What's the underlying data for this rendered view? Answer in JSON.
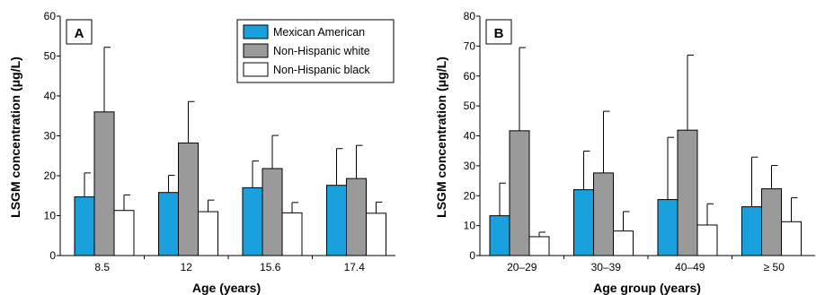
{
  "chart_data": [
    {
      "type": "bar",
      "panel_label": "A",
      "xlabel": "Age (years)",
      "ylabel": "LSGM concentration (μg/L)",
      "ylim": [
        0,
        60
      ],
      "yticks": [
        0,
        10,
        20,
        30,
        40,
        50,
        60
      ],
      "categories": [
        "8.5",
        "12",
        "15.6",
        "17.4"
      ],
      "error_bars": "upper",
      "legend": {
        "placement": "top-right"
      },
      "series": [
        {
          "name": "Mexican American",
          "color": "#1aa0dc",
          "values": [
            14.7,
            15.8,
            17.0,
            17.6
          ],
          "errors_upper": [
            20.7,
            20.1,
            23.7,
            26.8
          ]
        },
        {
          "name": "Non-Hispanic white",
          "color": "#9a9a9a",
          "values": [
            36.0,
            28.2,
            21.8,
            19.3
          ],
          "errors_upper": [
            52.2,
            38.6,
            30.1,
            27.6
          ]
        },
        {
          "name": "Non-Hispanic black",
          "color": "#ffffff",
          "values": [
            11.3,
            11.0,
            10.7,
            10.6
          ],
          "errors_upper": [
            15.2,
            13.9,
            13.3,
            13.4
          ]
        }
      ]
    },
    {
      "type": "bar",
      "panel_label": "B",
      "xlabel": "Age group (years)",
      "ylabel": "LSGM concentration (μg/L)",
      "ylim": [
        0,
        80
      ],
      "yticks": [
        0,
        10,
        20,
        30,
        40,
        50,
        60,
        70,
        80
      ],
      "categories": [
        "20–29",
        "30–39",
        "40–49",
        "≥ 50"
      ],
      "error_bars": "upper",
      "series": [
        {
          "name": "Mexican American",
          "color": "#1aa0dc",
          "values": [
            13.3,
            22.0,
            18.7,
            16.3
          ],
          "errors_upper": [
            24.2,
            34.9,
            39.5,
            32.9
          ]
        },
        {
          "name": "Non-Hispanic white",
          "color": "#9a9a9a",
          "values": [
            41.7,
            27.6,
            41.9,
            22.3
          ],
          "errors_upper": [
            69.5,
            48.2,
            67.0,
            30.1
          ]
        },
        {
          "name": "Non-Hispanic black",
          "color": "#ffffff",
          "values": [
            6.3,
            8.2,
            10.2,
            11.3
          ],
          "errors_upper": [
            7.8,
            14.7,
            17.3,
            19.3
          ]
        }
      ]
    }
  ]
}
